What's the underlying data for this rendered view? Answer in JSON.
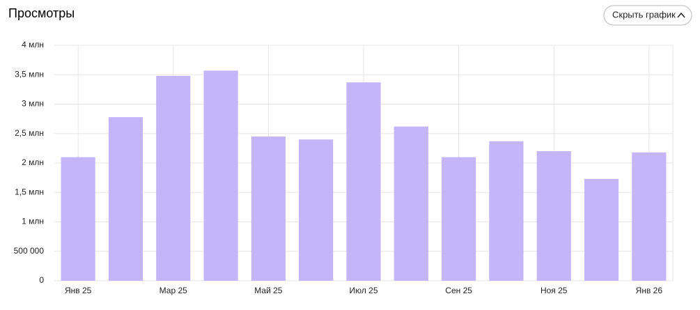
{
  "chart_data": {
    "type": "bar",
    "title": "Просмотры",
    "categories": [
      "Янв 25",
      null,
      "Мар 25",
      null,
      "Май 25",
      null,
      "Июл 25",
      null,
      "Сен 25",
      null,
      "Ноя 25",
      null,
      "Янв 26"
    ],
    "values": [
      2100000,
      2780000,
      3480000,
      3570000,
      2450000,
      2400000,
      3370000,
      2620000,
      2100000,
      2370000,
      2200000,
      1730000,
      2180000
    ],
    "color": "#c3b5f8",
    "ylim": [
      0,
      4000000
    ],
    "yticks": [
      0,
      {
        "value": 500000,
        "label": "500 000"
      },
      {
        "value": 1000000,
        "label": "1 млн"
      },
      {
        "value": 1500000,
        "label": "1,5 млн"
      },
      {
        "value": 2000000,
        "label": "2 млн"
      },
      {
        "value": 2500000,
        "label": "2,5 млн"
      },
      {
        "value": 3000000,
        "label": "3 млн"
      },
      {
        "value": 3500000,
        "label": "3,5 млн"
      },
      {
        "value": 4000000,
        "label": "4 млн"
      }
    ],
    "grid": true
  },
  "controls": {
    "toggle_chart": "Скрыть график"
  }
}
